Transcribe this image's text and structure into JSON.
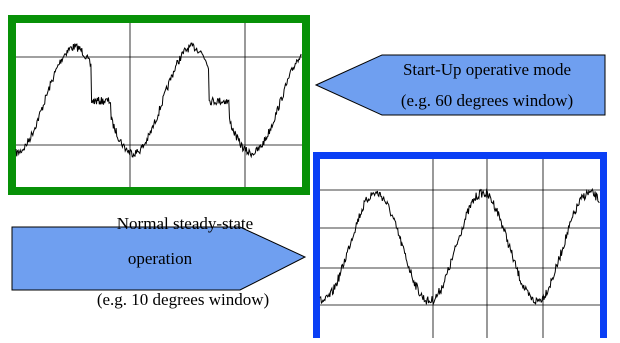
{
  "callouts": [
    {
      "lines": [
        "Start-Up operative mode",
        "(e.g. 60 degrees window)"
      ]
    },
    {
      "lines": [
        "Normal steady-state",
        "operation",
        "(e.g. 10 degrees window)"
      ]
    }
  ]
}
